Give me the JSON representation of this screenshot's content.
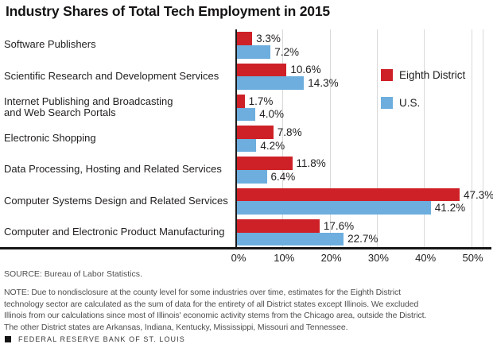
{
  "title": "Industry Shares of Total Tech Employment in 2015",
  "chart_data": {
    "type": "bar",
    "orientation": "horizontal",
    "title": "Industry Shares of Total Tech Employment in 2015",
    "categories": [
      "Software Publishers",
      "Scientific Research and Development Services",
      "Internet Publishing and Broadcasting\nand Web Search Portals",
      "Electronic Shopping",
      "Data Processing, Hosting and Related Services",
      "Computer Systems Design and Related Services",
      "Computer and Electronic Product Manufacturing"
    ],
    "series": [
      {
        "name": "Eighth District",
        "color": "#ce2127",
        "values": [
          3.3,
          10.6,
          1.7,
          7.8,
          11.8,
          47.3,
          17.6
        ],
        "labels": [
          "3.3%",
          "10.6%",
          "1.7%",
          "7.8%",
          "11.8%",
          "47.3%",
          "17.6%"
        ]
      },
      {
        "name": "U.S.",
        "color": "#6daede",
        "values": [
          7.2,
          14.3,
          4.0,
          4.2,
          6.4,
          41.2,
          22.7
        ],
        "labels": [
          "7.2%",
          "14.3%",
          "4.0%",
          "4.2%",
          "6.4%",
          "41.2%",
          "22.7%"
        ]
      }
    ],
    "x_ticks": [
      "0%",
      "10%",
      "20%",
      "30%",
      "40%",
      "50%"
    ],
    "xlim": [
      0,
      52.5
    ],
    "xlabel": "",
    "ylabel": "",
    "grid": "vertical",
    "legend_position": "upper-right-inside",
    "gridline_color": "#d9d9d9"
  },
  "source": "SOURCE: Bureau of Labor Statistics.",
  "note": "NOTE: Due to nondisclosure at the county level for some industries over time, estimates for the Eighth District\ntechnology sector are calculated as the sum of data for the entirety of all District states except Illinois. We excluded\nIllinois from our calculations since most of Illinois' economic activity stems from the Chicago area, outside the District.\nThe other District states are Arkansas, Indiana, Kentucky, Mississippi, Missouri and Tennessee.",
  "footer": "FEDERAL RESERVE BANK OF ST. LOUIS"
}
